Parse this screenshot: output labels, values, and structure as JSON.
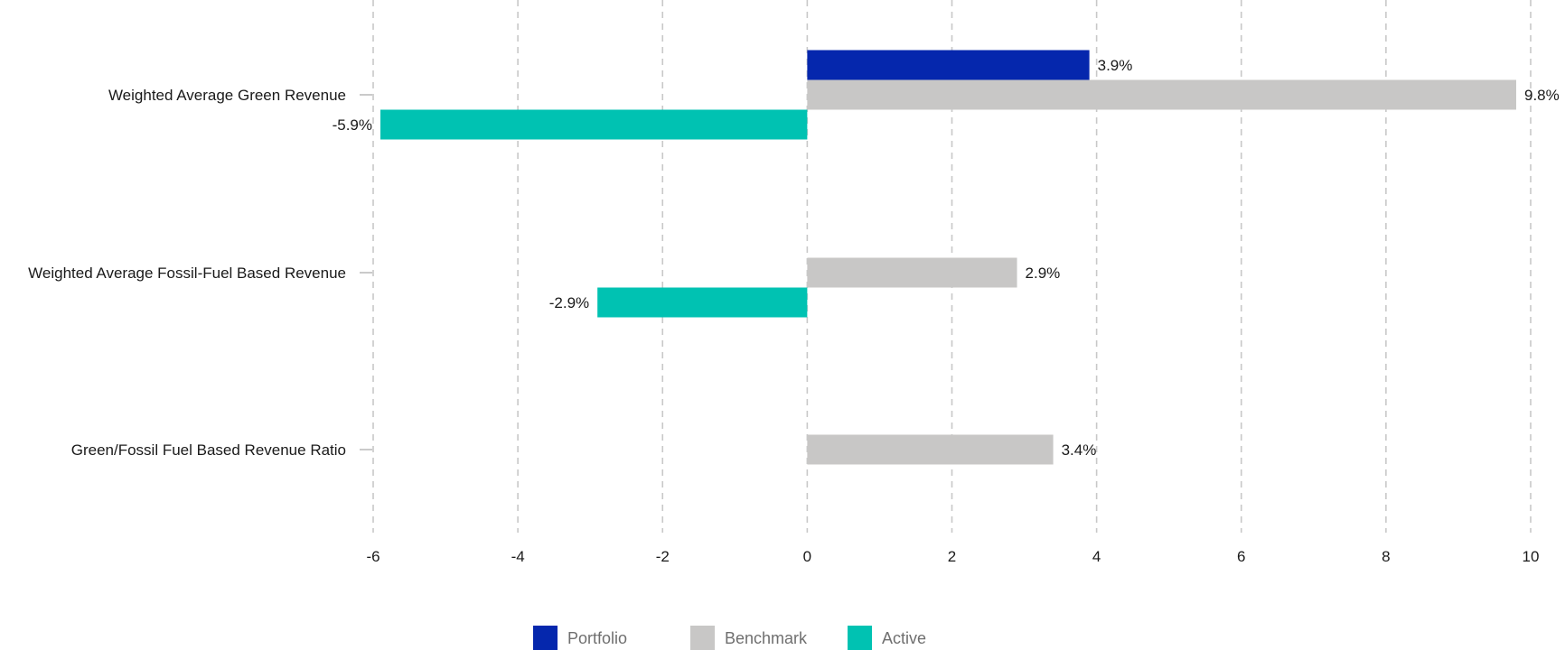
{
  "chart_data": {
    "type": "bar",
    "orientation": "horizontal",
    "categories": [
      "Weighted Average Green Revenue",
      "Weighted Average Fossil-Fuel Based Revenue",
      "Green/Fossil Fuel Based Revenue Ratio"
    ],
    "series": [
      {
        "name": "Portfolio",
        "color": "#0527ad",
        "values": [
          3.9,
          null,
          null
        ],
        "labels": [
          "3.9%",
          null,
          null
        ]
      },
      {
        "name": "Benchmark",
        "color": "#c8c7c6",
        "values": [
          9.8,
          2.9,
          3.4
        ],
        "labels": [
          "9.8%",
          "2.9%",
          "3.4%"
        ]
      },
      {
        "name": "Active",
        "color": "#00c2b2",
        "values": [
          -5.9,
          -2.9,
          null
        ],
        "labels": [
          "-5.9%",
          "-2.9%",
          null
        ]
      }
    ],
    "xlim": [
      -6,
      10
    ],
    "xticks": [
      -6,
      -4,
      -2,
      0,
      2,
      4,
      6,
      8,
      10
    ],
    "grid": "vertical-dashed",
    "legend_position": "bottom-center",
    "title": "",
    "xlabel": "",
    "ylabel": ""
  }
}
